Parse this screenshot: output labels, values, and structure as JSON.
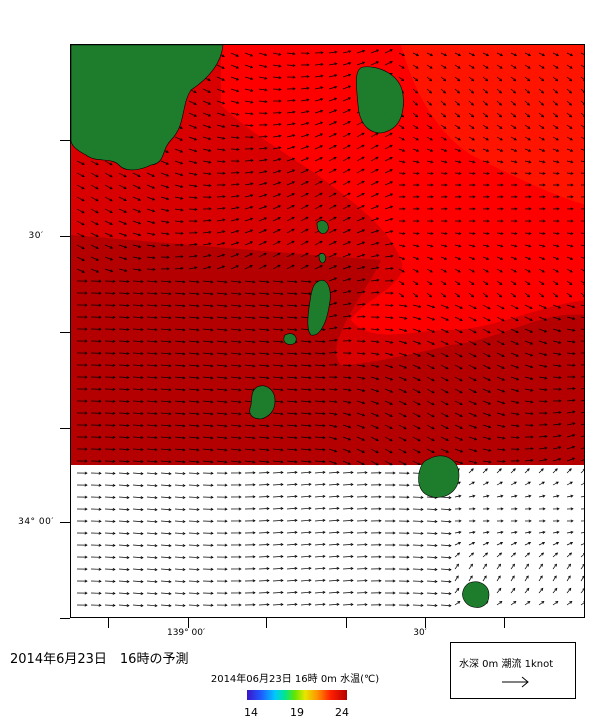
{
  "map": {
    "latitude_labels": [
      "30′",
      "34° 00′"
    ],
    "longitude_labels": [
      "139° 00′",
      "30′"
    ],
    "colors": {
      "land": "#1e7d2c",
      "sea_warm": "#ff0000",
      "sea_mid": "#d80000",
      "sea_cool": "#b40000",
      "no_data": "#ffffff"
    }
  },
  "title": "2014年6月23日　16時の予測",
  "colorbar": {
    "title": "2014年06月23日 16時 0m 水温(℃)",
    "ticks": [
      "14",
      "19",
      "24"
    ],
    "range": [
      14,
      24
    ]
  },
  "legend": {
    "label": "水深 0m 潮流 1knot",
    "arrow_icon": "right-arrow-icon"
  }
}
